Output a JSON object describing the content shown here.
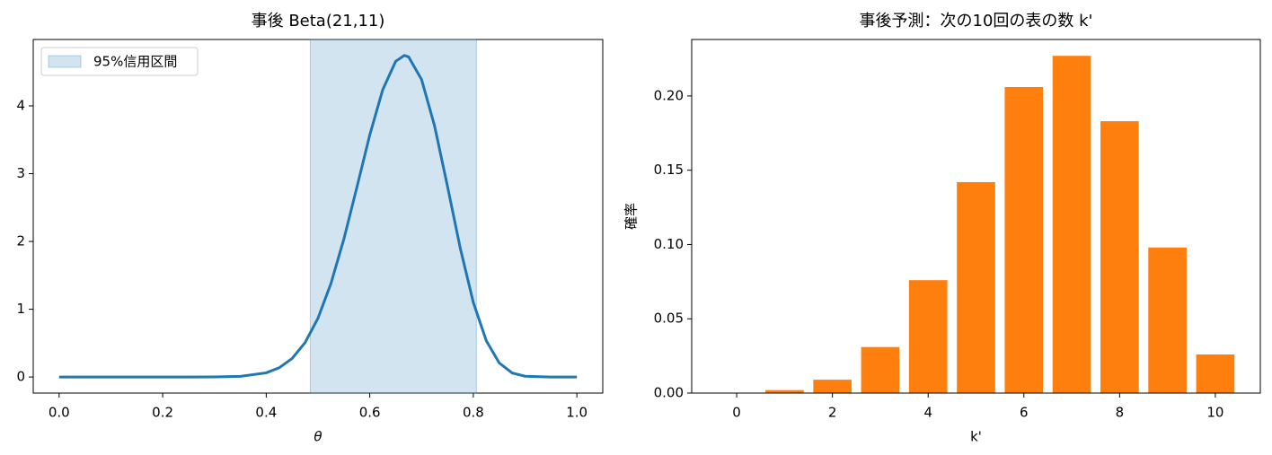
{
  "chart_data": [
    {
      "type": "line",
      "title": "事後 Beta(21,11)",
      "x_label": "θ",
      "x": [
        0,
        0.1,
        0.2,
        0.25,
        0.3,
        0.35,
        0.4,
        0.425,
        0.45,
        0.475,
        0.5,
        0.525,
        0.55,
        0.575,
        0.6,
        0.625,
        0.65,
        0.6667,
        0.675,
        0.7,
        0.725,
        0.75,
        0.775,
        0.8,
        0.825,
        0.85,
        0.875,
        0.9,
        0.95,
        1
      ],
      "series": [
        {
          "color": "#1f77b4",
          "values": [
            0,
            0,
            0,
            4e-05,
            0.0009,
            0.0096,
            0.0619,
            0.136,
            0.274,
            0.507,
            0.868,
            1.379,
            2.036,
            2.796,
            3.572,
            4.239,
            4.658,
            4.745,
            4.723,
            4.39,
            3.71,
            2.818,
            1.893,
            1.1,
            0.536,
            0.208,
            0.06,
            0.0113,
            3e-05,
            0
          ]
        }
      ],
      "shade": {
        "x": [
          0.485,
          0.806
        ],
        "label": "95%信用区間",
        "color": "#1f77b4"
      },
      "legend": "upper left",
      "xlim": [
        -0.05,
        1.05
      ],
      "ylim": [
        -0.237,
        4.98
      ],
      "xticks": [
        {
          "value": 0,
          "label": "0.0"
        },
        {
          "value": 0.2,
          "label": "0.2"
        },
        {
          "value": 0.4,
          "label": "0.4"
        },
        {
          "value": 0.6,
          "label": "0.6"
        },
        {
          "value": 0.8,
          "label": "0.8"
        },
        {
          "value": 1,
          "label": "1.0"
        }
      ],
      "yticks": [
        0,
        1,
        2,
        3,
        4
      ]
    },
    {
      "type": "bar",
      "title": "事後予測：次の10回の表の数 k'",
      "x_label": "k'",
      "y_label": "確率",
      "x": [
        0,
        1,
        2,
        3,
        4,
        5,
        6,
        7,
        8,
        9,
        10
      ],
      "series": [
        {
          "color": "#ff7f0e",
          "values": [
            0.0003,
            0.002,
            0.009,
            0.031,
            0.076,
            0.142,
            0.206,
            0.227,
            0.183,
            0.098,
            0.026
          ]
        }
      ],
      "xlim": [
        -0.94,
        10.94
      ],
      "ylim": [
        0,
        0.238
      ],
      "xticks": [
        0,
        2,
        4,
        6,
        8,
        10
      ],
      "yticks": [
        {
          "value": 0,
          "label": "0.00"
        },
        {
          "value": 0.05,
          "label": "0.05"
        },
        {
          "value": 0.1,
          "label": "0.10"
        },
        {
          "value": 0.15,
          "label": "0.15"
        },
        {
          "value": 0.2,
          "label": "0.20"
        }
      ]
    }
  ]
}
